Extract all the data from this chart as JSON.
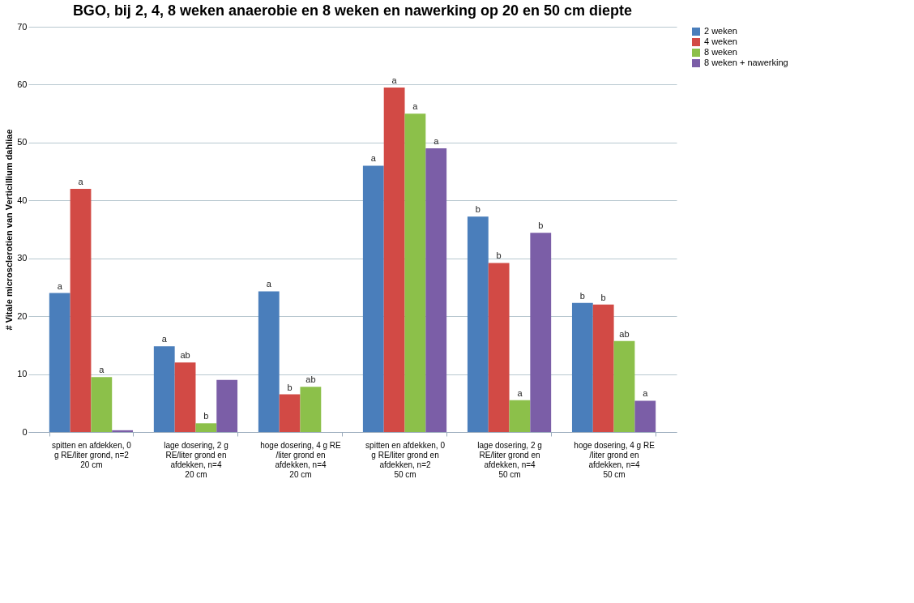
{
  "chart_data": {
    "type": "bar",
    "title": "BGO, bij 2, 4, 8 weken  anaerobie  en 8 weken en nawerking op 20 en 50 cm diepte",
    "ylabel": "# Vitale microsclerotien van Verticillium dahliae",
    "categories": [
      "spitten en afdekken, 0 g RE/liter grond, n=2\n20 cm",
      "lage dosering, 2 g RE/liter grond en afdekken, n=4\n20 cm",
      "hoge dosering, 4 g RE /liter grond en afdekken, n=4\n20 cm",
      "spitten en afdekken, 0 g RE/liter grond en afdekken, n=2\n50 cm",
      "lage dosering, 2 g RE/liter grond en afdekken, n=4\n50 cm",
      "hoge dosering, 4 g RE /liter grond en afdekken, n=4\n50 cm"
    ],
    "series": [
      {
        "name": "2 weken",
        "color": "#4a7ebb",
        "values": [
          24,
          14.8,
          24.3,
          46,
          37.2,
          22.3
        ],
        "value_labels": [
          "a",
          "a",
          "a",
          "a",
          "b",
          "b"
        ]
      },
      {
        "name": "4 weken",
        "color": "#d24a45",
        "values": [
          42,
          12,
          6.5,
          59.5,
          29.2,
          22
        ],
        "value_labels": [
          "a",
          "ab",
          "b",
          "a",
          "b",
          "b"
        ]
      },
      {
        "name": "8 weken",
        "color": "#8cc04a",
        "values": [
          9.5,
          1.5,
          7.8,
          55,
          5.5,
          15.7
        ],
        "value_labels": [
          "a",
          "b",
          "ab",
          "a",
          "a",
          "ab"
        ]
      },
      {
        "name": "8 weken + nawerking",
        "color": "#7b5ea7",
        "values": [
          0.3,
          9,
          null,
          49,
          34.4,
          5.4
        ],
        "value_labels": [
          null,
          null,
          null,
          "a",
          "b",
          "a"
        ]
      }
    ],
    "ylim": [
      0,
      70
    ],
    "yticks": [
      0,
      10,
      20,
      30,
      40,
      50,
      60,
      70
    ],
    "grid": "y",
    "legend": "right"
  }
}
